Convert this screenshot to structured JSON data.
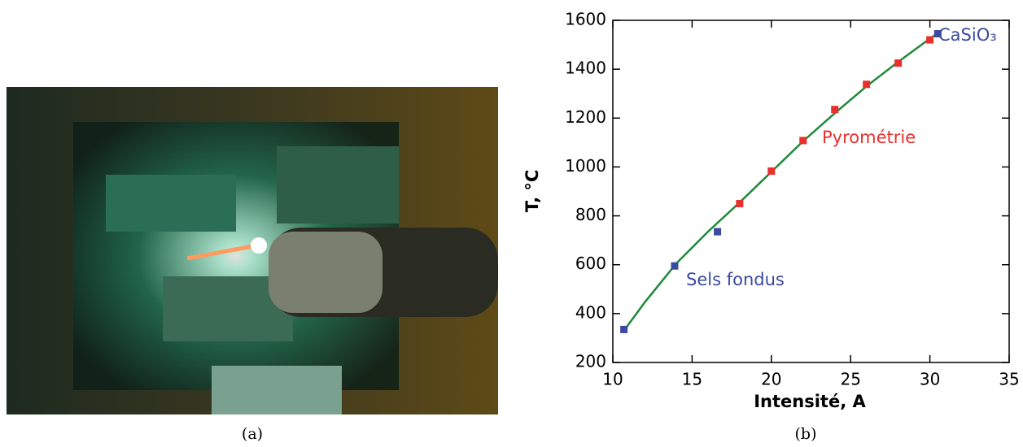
{
  "captions": [
    "(a)",
    "(b)"
  ],
  "chart_data": {
    "type": "scatter",
    "xlabel": "Intensité, A",
    "ylabel": "T, °C",
    "xlim": [
      10,
      35
    ],
    "xticks": [
      10,
      15,
      20,
      25,
      30,
      35
    ],
    "ylim": [
      200,
      1600
    ],
    "yticks": [
      200,
      400,
      600,
      800,
      1000,
      1200,
      1400,
      1600
    ],
    "series": [
      {
        "mode": "line",
        "color": "#1f8a3a",
        "x": [
          10.7,
          12,
          14,
          16,
          18,
          20,
          22,
          24,
          26,
          28,
          30,
          30.5
        ],
        "y": [
          330,
          445,
          605,
          735,
          855,
          980,
          1105,
          1220,
          1330,
          1430,
          1525,
          1548
        ]
      },
      {
        "mode": "markers",
        "color": "#e8302c",
        "x": [
          18,
          20,
          22,
          24,
          26,
          28,
          30
        ],
        "y": [
          850,
          983,
          1108,
          1235,
          1338,
          1425,
          1520
        ]
      },
      {
        "mode": "markers",
        "color": "#3a4aa0",
        "x": [
          10.7,
          13.9,
          16.6,
          30.5
        ],
        "y": [
          335,
          595,
          735,
          1545
        ]
      }
    ],
    "annotations": [
      {
        "text": "Pyrométrie",
        "color": "#e8302c"
      },
      {
        "text": "Sels fondus",
        "color": "#3a4aa0"
      },
      {
        "text": "CaSiO₃",
        "color": "#3a4aa0"
      }
    ]
  }
}
